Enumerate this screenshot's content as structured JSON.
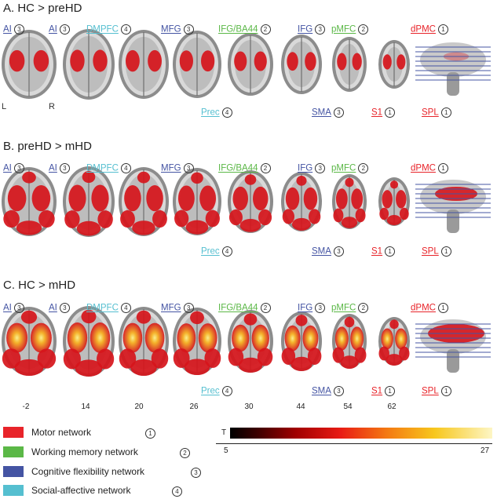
{
  "panels": [
    {
      "title": "A. HC > preHD",
      "intensity": 0.45
    },
    {
      "title": "B. preHD > mHD",
      "intensity": 0.75
    },
    {
      "title": "C. HC > mHD",
      "intensity": 1.0
    }
  ],
  "labels_top": [
    {
      "name": "AI",
      "net": "3"
    },
    {
      "name": "AI",
      "net": "3"
    },
    {
      "name": "DMPFC",
      "net": "4"
    },
    {
      "name": "MFG",
      "net": "3"
    },
    {
      "name": "IFG/BA44",
      "net": "2"
    },
    {
      "name": "IFG",
      "net": "3"
    },
    {
      "name": "pMFC",
      "net": "2"
    },
    {
      "name": "dPMC",
      "net": "1"
    }
  ],
  "labels_bottom": [
    {
      "name": "Prec",
      "net": "4"
    },
    {
      "name": "SMA",
      "net": "3"
    },
    {
      "name": "S1",
      "net": "1"
    },
    {
      "name": "SPL",
      "net": "1"
    }
  ],
  "orientation": {
    "left": "L",
    "right": "R"
  },
  "slice_z": [
    "-2",
    "14",
    "20",
    "26",
    "30",
    "44",
    "54",
    "62"
  ],
  "legend": [
    {
      "label": "Motor network",
      "num": "1",
      "color": "#e8242a"
    },
    {
      "label": "Working memory network",
      "num": "2",
      "color": "#5bb847"
    },
    {
      "label": "Cognitive flexibility network",
      "num": "3",
      "color": "#4454a3"
    },
    {
      "label": "Social-affective network",
      "num": "4",
      "color": "#55bfd0"
    }
  ],
  "colorbar": {
    "title": "T",
    "min": "5",
    "max": "27"
  }
}
